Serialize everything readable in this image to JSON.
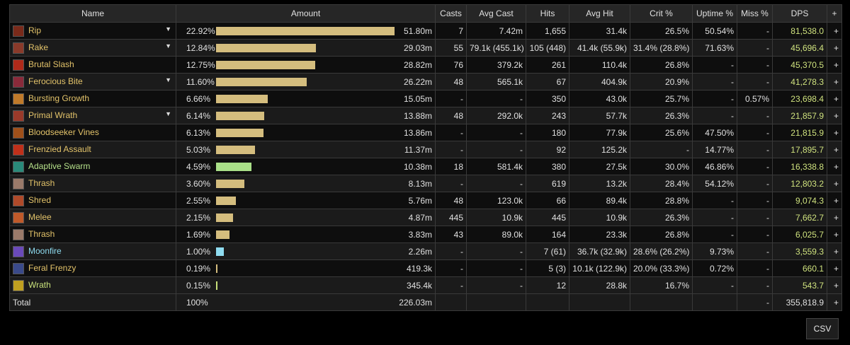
{
  "table": {
    "columns": [
      "Name",
      "Amount",
      "Casts",
      "Avg Cast",
      "Hits",
      "Avg Hit",
      "Crit %",
      "Uptime %",
      "Miss %",
      "DPS",
      "+"
    ],
    "bar_color": "#d4bd7e",
    "rows": [
      {
        "name": "Rip",
        "pct": "22.92%",
        "amount": "51.80m",
        "casts": "7",
        "avg_cast": "7.42m",
        "hits": "1,655",
        "avg_hit": "31.4k",
        "crit": "26.5%",
        "uptime": "50.54%",
        "miss": "-",
        "dps": "81,538.0",
        "action": "+",
        "color": "#e3c36a",
        "icon": "#7a2a1a",
        "expandable": true
      },
      {
        "name": "Rake",
        "pct": "12.84%",
        "amount": "29.03m",
        "casts": "55",
        "avg_cast": "79.1k (455.1k)",
        "hits": "105 (448)",
        "avg_hit": "41.4k (55.9k)",
        "crit": "31.4% (28.8%)",
        "uptime": "71.63%",
        "miss": "-",
        "dps": "45,696.4",
        "action": "+",
        "color": "#e3c36a",
        "icon": "#8a3a2a",
        "expandable": true
      },
      {
        "name": "Brutal Slash",
        "pct": "12.75%",
        "amount": "28.82m",
        "casts": "76",
        "avg_cast": "379.2k",
        "hits": "261",
        "avg_hit": "110.4k",
        "crit": "26.8%",
        "uptime": "-",
        "miss": "-",
        "dps": "45,370.5",
        "action": "+",
        "color": "#e3c36a",
        "icon": "#b02a1a",
        "expandable": false
      },
      {
        "name": "Ferocious Bite",
        "pct": "11.60%",
        "amount": "26.22m",
        "casts": "48",
        "avg_cast": "565.1k",
        "hits": "67",
        "avg_hit": "404.9k",
        "crit": "20.9%",
        "uptime": "-",
        "miss": "-",
        "dps": "41,278.3",
        "action": "+",
        "color": "#e3c36a",
        "icon": "#8a2a3a",
        "expandable": true
      },
      {
        "name": "Bursting Growth",
        "pct": "6.66%",
        "amount": "15.05m",
        "casts": "-",
        "avg_cast": "-",
        "hits": "350",
        "avg_hit": "43.0k",
        "crit": "25.7%",
        "uptime": "-",
        "miss": "0.57%",
        "dps": "23,698.4",
        "action": "+",
        "color": "#e3c36a",
        "icon": "#c07a2a",
        "expandable": false
      },
      {
        "name": "Primal Wrath",
        "pct": "6.14%",
        "amount": "13.88m",
        "casts": "48",
        "avg_cast": "292.0k",
        "hits": "243",
        "avg_hit": "57.7k",
        "crit": "26.3%",
        "uptime": "-",
        "miss": "-",
        "dps": "21,857.9",
        "action": "+",
        "color": "#e3c36a",
        "icon": "#9a3a2a",
        "expandable": true
      },
      {
        "name": "Bloodseeker Vines",
        "pct": "6.13%",
        "amount": "13.86m",
        "casts": "-",
        "avg_cast": "-",
        "hits": "180",
        "avg_hit": "77.9k",
        "crit": "25.6%",
        "uptime": "47.50%",
        "miss": "-",
        "dps": "21,815.9",
        "action": "+",
        "color": "#e3c36a",
        "icon": "#a0501a",
        "expandable": false
      },
      {
        "name": "Frenzied Assault",
        "pct": "5.03%",
        "amount": "11.37m",
        "casts": "-",
        "avg_cast": "-",
        "hits": "92",
        "avg_hit": "125.2k",
        "crit": "-",
        "uptime": "14.77%",
        "miss": "-",
        "dps": "17,895.7",
        "action": "+",
        "color": "#e3c36a",
        "icon": "#c0301a",
        "expandable": false
      },
      {
        "name": "Adaptive Swarm",
        "pct": "4.59%",
        "amount": "10.38m",
        "casts": "18",
        "avg_cast": "581.4k",
        "hits": "380",
        "avg_hit": "27.5k",
        "crit": "30.0%",
        "uptime": "46.86%",
        "miss": "-",
        "dps": "16,338.8",
        "action": "+",
        "color": "#b5e08a",
        "bar": "#a9df88",
        "icon": "#2a8a7a",
        "expandable": false
      },
      {
        "name": "Thrash",
        "pct": "3.60%",
        "amount": "8.13m",
        "casts": "-",
        "avg_cast": "-",
        "hits": "619",
        "avg_hit": "13.2k",
        "crit": "28.4%",
        "uptime": "54.12%",
        "miss": "-",
        "dps": "12,803.2",
        "action": "+",
        "color": "#e3c36a",
        "icon": "#9a7a6a",
        "expandable": false
      },
      {
        "name": "Shred",
        "pct": "2.55%",
        "amount": "5.76m",
        "casts": "48",
        "avg_cast": "123.0k",
        "hits": "66",
        "avg_hit": "89.4k",
        "crit": "28.8%",
        "uptime": "-",
        "miss": "-",
        "dps": "9,074.3",
        "action": "+",
        "color": "#e3c36a",
        "icon": "#b04a2a",
        "expandable": false
      },
      {
        "name": "Melee",
        "pct": "2.15%",
        "amount": "4.87m",
        "casts": "445",
        "avg_cast": "10.9k",
        "hits": "445",
        "avg_hit": "10.9k",
        "crit": "26.3%",
        "uptime": "-",
        "miss": "-",
        "dps": "7,662.7",
        "action": "+",
        "color": "#e3c36a",
        "icon": "#c05a2a",
        "expandable": false
      },
      {
        "name": "Thrash",
        "pct": "1.69%",
        "amount": "3.83m",
        "casts": "43",
        "avg_cast": "89.0k",
        "hits": "164",
        "avg_hit": "23.3k",
        "crit": "26.8%",
        "uptime": "-",
        "miss": "-",
        "dps": "6,025.7",
        "action": "+",
        "color": "#e3c36a",
        "icon": "#9a7a6a",
        "expandable": false
      },
      {
        "name": "Moonfire",
        "pct": "1.00%",
        "amount": "2.26m",
        "casts": "-",
        "avg_cast": "-",
        "hits": "7 (61)",
        "avg_hit": "36.7k (32.9k)",
        "crit": "28.6% (26.2%)",
        "uptime": "9.73%",
        "miss": "-",
        "dps": "3,559.3",
        "action": "+",
        "color": "#8fdcf0",
        "bar": "#8fdcf0",
        "icon": "#6a4aba",
        "expandable": false
      },
      {
        "name": "Feral Frenzy",
        "pct": "0.19%",
        "amount": "419.3k",
        "casts": "-",
        "avg_cast": "-",
        "hits": "5 (3)",
        "avg_hit": "10.1k (122.9k)",
        "crit": "20.0% (33.3%)",
        "uptime": "0.72%",
        "miss": "-",
        "dps": "660.1",
        "action": "+",
        "color": "#e3c36a",
        "icon": "#3a4a8a",
        "expandable": false
      },
      {
        "name": "Wrath",
        "pct": "0.15%",
        "amount": "345.4k",
        "casts": "-",
        "avg_cast": "-",
        "hits": "12",
        "avg_hit": "28.8k",
        "crit": "16.7%",
        "uptime": "-",
        "miss": "-",
        "dps": "543.7",
        "action": "+",
        "color": "#c8e07a",
        "bar": "#c8e07a",
        "icon": "#c0a020",
        "expandable": false
      }
    ],
    "total": {
      "name": "Total",
      "pct": "100%",
      "amount": "226.03m",
      "miss": "-",
      "dps": "355,818.9",
      "action": "+"
    }
  },
  "button": {
    "label": "CSV"
  }
}
